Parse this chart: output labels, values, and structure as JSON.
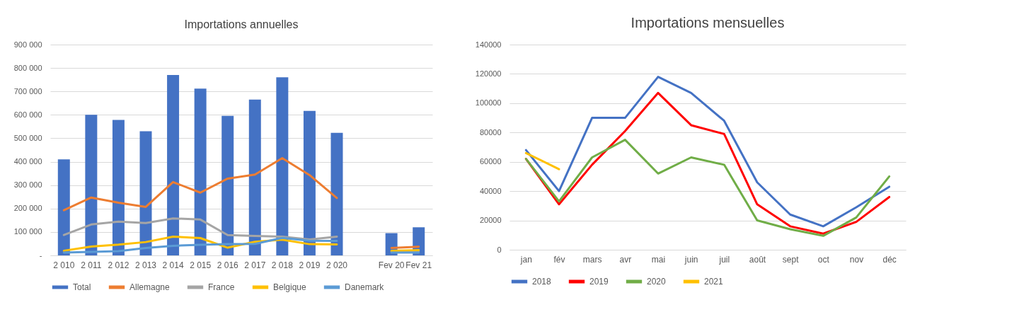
{
  "chart_data": [
    {
      "type": "bar",
      "title": "Importations annuelles",
      "categories": [
        "2 010",
        "2 011",
        "2 012",
        "2 013",
        "2 014",
        "2 015",
        "2 016",
        "2 017",
        "2 018",
        "2 019",
        "2 020",
        null,
        "Fev 20",
        "Fev 21"
      ],
      "series": [
        {
          "name": "Total",
          "type": "bar",
          "color": "#4472c4",
          "values": [
            410000,
            600000,
            578000,
            530000,
            770000,
            712000,
            596000,
            665000,
            760000,
            617000,
            523000,
            null,
            95000,
            120000
          ]
        },
        {
          "name": "Allemagne",
          "type": "line",
          "color": "#ed7d31",
          "values": [
            193000,
            247000,
            225000,
            207000,
            313000,
            268000,
            328000,
            345000,
            415000,
            343000,
            245000,
            null,
            32000,
            37000
          ]
        },
        {
          "name": "France",
          "type": "line",
          "color": "#a5a5a5",
          "values": [
            87000,
            132000,
            144000,
            138000,
            158000,
            153000,
            87000,
            83000,
            80000,
            68000,
            80000,
            null,
            16000,
            19000
          ]
        },
        {
          "name": "Belgique",
          "type": "line",
          "color": "#ffc000",
          "values": [
            20000,
            38000,
            46000,
            57000,
            80000,
            74000,
            33000,
            58000,
            67000,
            48000,
            47000,
            null,
            20000,
            23000
          ]
        },
        {
          "name": "Danemark",
          "type": "line",
          "color": "#5b9bd5",
          "values": [
            12000,
            15000,
            18000,
            32000,
            41000,
            45000,
            48000,
            49000,
            75000,
            63000,
            62000,
            null,
            12000,
            12000
          ]
        }
      ],
      "ylim": [
        0,
        900000
      ],
      "yticks": [
        {
          "value": 0,
          "label": "-"
        },
        {
          "value": 100000,
          "label": "100 000"
        },
        {
          "value": 200000,
          "label": "200 000"
        },
        {
          "value": 300000,
          "label": "300 000"
        },
        {
          "value": 400000,
          "label": "400 000"
        },
        {
          "value": 500000,
          "label": "500 000"
        },
        {
          "value": 600000,
          "label": "600 000"
        },
        {
          "value": 700000,
          "label": "700 000"
        },
        {
          "value": 800000,
          "label": "800 000"
        },
        {
          "value": 900000,
          "label": "900 000"
        }
      ],
      "grid": "y",
      "legend": "bottom"
    },
    {
      "type": "line",
      "title": "Importations mensuelles",
      "categories": [
        "jan",
        "fév",
        "mars",
        "avr",
        "mai",
        "juin",
        "juil",
        "août",
        "sept",
        "oct",
        "nov",
        "déc"
      ],
      "series": [
        {
          "name": "2018",
          "color": "#4472c4",
          "values": [
            68000,
            40000,
            90000,
            90000,
            118000,
            107000,
            88000,
            46000,
            24000,
            16000,
            29000,
            43000
          ]
        },
        {
          "name": "2019",
          "color": "#ff0000",
          "values": [
            62000,
            31000,
            58000,
            81000,
            107000,
            85000,
            79000,
            31000,
            16000,
            11000,
            19000,
            36000
          ]
        },
        {
          "name": "2020",
          "color": "#70ad47",
          "values": [
            62000,
            33000,
            63000,
            75000,
            52000,
            63000,
            58000,
            20000,
            14000,
            9500,
            22000,
            50000
          ]
        },
        {
          "name": "2021",
          "color": "#ffc000",
          "values": [
            66000,
            55000,
            null,
            null,
            null,
            null,
            null,
            null,
            null,
            null,
            null,
            null
          ]
        }
      ],
      "ylim": [
        0,
        140000
      ],
      "yticks": [
        0,
        20000,
        40000,
        60000,
        80000,
        100000,
        120000,
        140000
      ],
      "grid": "y",
      "legend": "bottom"
    }
  ]
}
